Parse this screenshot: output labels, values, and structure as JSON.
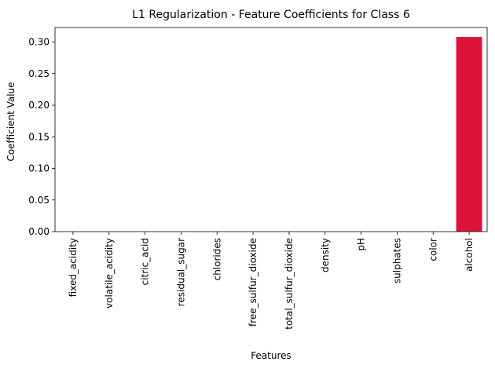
{
  "chart_data": {
    "type": "bar",
    "title": "L1 Regularization - Feature Coefficients for Class 6",
    "xlabel": "Features",
    "ylabel": "Coefficient Value",
    "categories": [
      "fixed_acidity",
      "volatile_acidity",
      "citric_acid",
      "residual_sugar",
      "chlorides",
      "free_sulfur_dioxide",
      "total_sulfur_dioxide",
      "density",
      "pH",
      "sulphates",
      "color",
      "alcohol"
    ],
    "values": [
      0,
      0,
      0,
      0,
      0,
      0,
      0,
      0,
      0,
      0,
      0,
      0.308
    ],
    "ylim": [
      0,
      0.323
    ],
    "yticks": [
      {
        "value": 0.0,
        "label": "0.00"
      },
      {
        "value": 0.05,
        "label": "0.05"
      },
      {
        "value": 0.1,
        "label": "0.10"
      },
      {
        "value": 0.15,
        "label": "0.15"
      },
      {
        "value": 0.2,
        "label": "0.20"
      },
      {
        "value": 0.25,
        "label": "0.25"
      },
      {
        "value": 0.3,
        "label": "0.30"
      }
    ],
    "grid": false,
    "bar_color": "#dc143c"
  }
}
